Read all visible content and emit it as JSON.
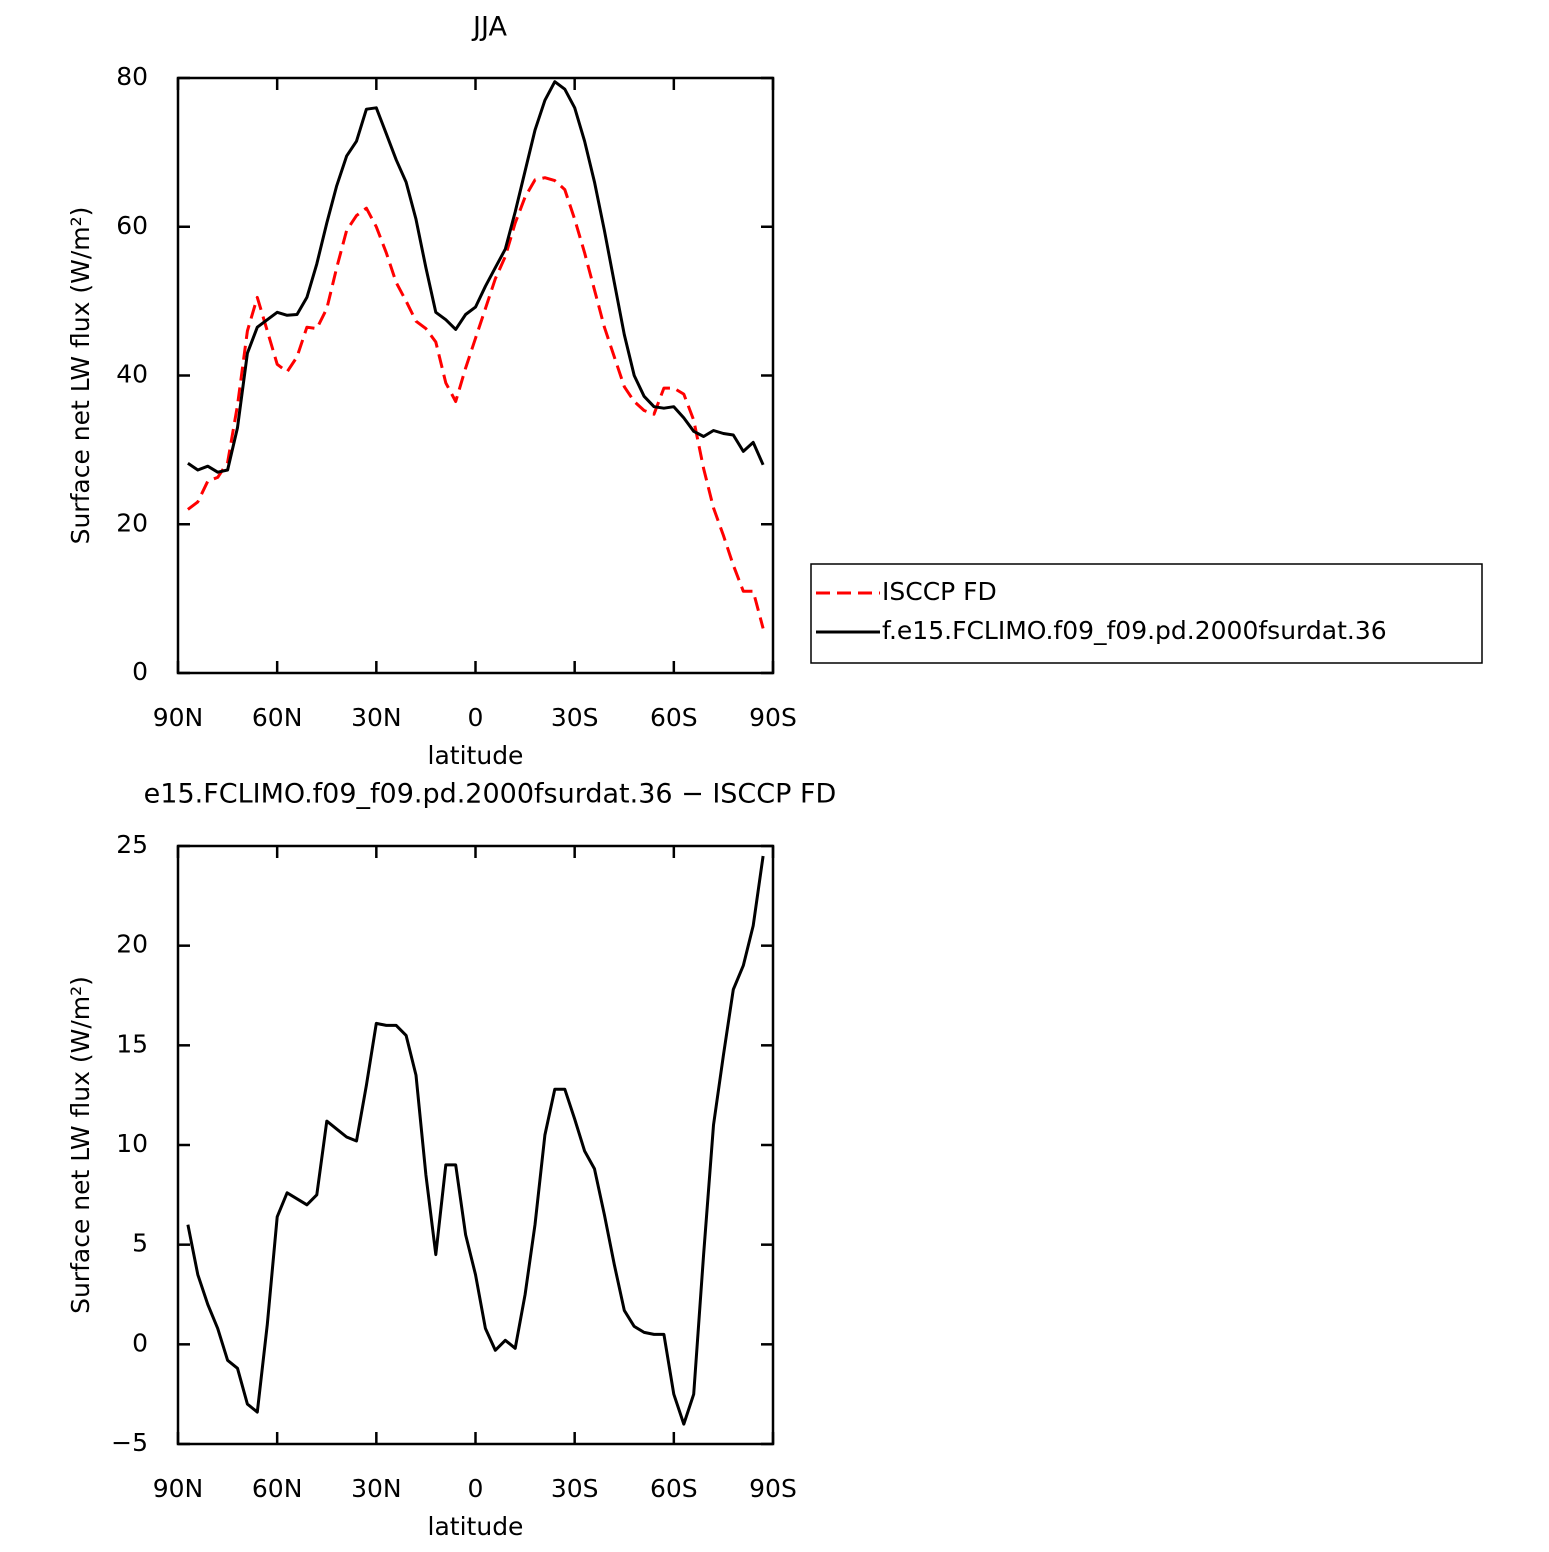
{
  "chart_data": [
    {
      "type": "line",
      "title": "JJA",
      "xlabel": "latitude",
      "ylabel": "Surface net LW flux (W/m²)",
      "x": [
        87,
        84,
        81,
        78,
        75,
        72,
        69,
        66,
        63,
        60,
        57,
        54,
        51,
        48,
        45,
        42,
        39,
        36,
        33,
        30,
        27,
        24,
        21,
        18,
        15,
        12,
        9,
        6,
        3,
        0,
        -3,
        -6,
        -9,
        -12,
        -15,
        -18,
        -21,
        -24,
        -27,
        -30,
        -33,
        -36,
        -39,
        -42,
        -45,
        -48,
        -51,
        -54,
        -57,
        -60,
        -63,
        -66,
        -69,
        -72,
        -75,
        -78,
        -81,
        -84,
        -87
      ],
      "series": [
        {
          "name": "ISCCP FD",
          "color": "#ff0000",
          "dash": true,
          "values": [
            22.0,
            23.0,
            25.8,
            26.3,
            28.3,
            36,
            46,
            50.5,
            46,
            41.5,
            40.5,
            42.5,
            46.5,
            46.3,
            49,
            54.5,
            59.5,
            61.5,
            62.5,
            60,
            56.5,
            52.5,
            50,
            47.3,
            46.3,
            44.5,
            39,
            36.5,
            41,
            45,
            49,
            53,
            56,
            60.5,
            64,
            66.3,
            66.6,
            66.2,
            65,
            61,
            56.5,
            51.5,
            46.5,
            42.5,
            38.5,
            36.5,
            35.3,
            34.8,
            38.3,
            38.3,
            37.5,
            34,
            27.5,
            22.2,
            18.5,
            14.5,
            11,
            11,
            6
          ]
        },
        {
          "name": "f.e15.FCLIMO.f09_f09.pd.2000fsurdat.36",
          "color": "#000000",
          "dash": false,
          "values": [
            28.2,
            27.3,
            27.8,
            27.0,
            27.3,
            33,
            43,
            46.5,
            47.5,
            48.5,
            48.1,
            48.2,
            50.5,
            55,
            60.5,
            65.5,
            69.5,
            71.5,
            75.8,
            76.0,
            72.5,
            69,
            66,
            61,
            54.5,
            48.5,
            47.5,
            46.2,
            48.2,
            49.2,
            52,
            54.5,
            57,
            62,
            67.5,
            73,
            77,
            79.5,
            78.5,
            76,
            71.5,
            66,
            59.5,
            52.5,
            45.5,
            40,
            37.2,
            35.8,
            35.6,
            35.8,
            34.3,
            32.5,
            31.8,
            32.6,
            32.2,
            32.0,
            29.8,
            31.0,
            28.0
          ]
        }
      ],
      "xlim": [
        90,
        -90
      ],
      "xticks": [
        {
          "value": 90,
          "label": "90N"
        },
        {
          "value": 60,
          "label": "60N"
        },
        {
          "value": 30,
          "label": "30N"
        },
        0,
        {
          "value": -30,
          "label": "30S"
        },
        {
          "value": -60,
          "label": "60S"
        },
        {
          "value": -90,
          "label": "90S"
        }
      ],
      "ylim": [
        0,
        80
      ],
      "yticks": [
        0,
        20,
        40,
        60,
        80
      ],
      "legend": "right"
    },
    {
      "type": "line",
      "title": "e15.FCLIMO.f09_f09.pd.2000fsurdat.36 − ISCCP FD",
      "xlabel": "latitude",
      "ylabel": "Surface net LW flux (W/m²)",
      "x": [
        87,
        84,
        81,
        78,
        75,
        72,
        69,
        66,
        63,
        60,
        57,
        54,
        51,
        48,
        45,
        42,
        39,
        36,
        33,
        30,
        27,
        24,
        21,
        18,
        15,
        12,
        9,
        6,
        3,
        0,
        -3,
        -6,
        -9,
        -12,
        -15,
        -18,
        -21,
        -24,
        -27,
        -30,
        -33,
        -36,
        -39,
        -42,
        -45,
        -48,
        -51,
        -54,
        -57,
        -60,
        -63,
        -66,
        -69,
        -72,
        -75,
        -78,
        -81,
        -84,
        -87
      ],
      "values": [
        6.0,
        3.5,
        2.0,
        0.8,
        -0.8,
        -1.2,
        -3.0,
        -3.4,
        1.0,
        6.4,
        7.6,
        7.3,
        7.0,
        7.5,
        11.2,
        10.8,
        10.4,
        10.2,
        13,
        16.1,
        16.0,
        16.0,
        15.5,
        13.5,
        8.5,
        4.5,
        9.0,
        9.0,
        5.5,
        3.5,
        0.8,
        -0.3,
        0.2,
        -0.2,
        2.5,
        6.0,
        10.5,
        12.8,
        12.8,
        11.3,
        9.7,
        8.8,
        6.5,
        4.0,
        1.7,
        0.9,
        0.6,
        0.5,
        0.5,
        -2.5,
        -4.0,
        -2.5,
        4.5,
        11.0,
        14.5,
        17.8,
        19.0,
        21.0,
        24.5
      ],
      "color": "#000000",
      "xlim": [
        90,
        -90
      ],
      "xticks": [
        {
          "value": 90,
          "label": "90N"
        },
        {
          "value": 60,
          "label": "60N"
        },
        {
          "value": 30,
          "label": "30N"
        },
        0,
        {
          "value": -30,
          "label": "30S"
        },
        {
          "value": -60,
          "label": "60S"
        },
        {
          "value": -90,
          "label": "90S"
        }
      ],
      "ylim": [
        -5,
        25
      ],
      "yticks": [
        {
          "value": -5,
          "label": "−5"
        },
        0,
        5,
        10,
        15,
        20,
        25
      ]
    }
  ]
}
